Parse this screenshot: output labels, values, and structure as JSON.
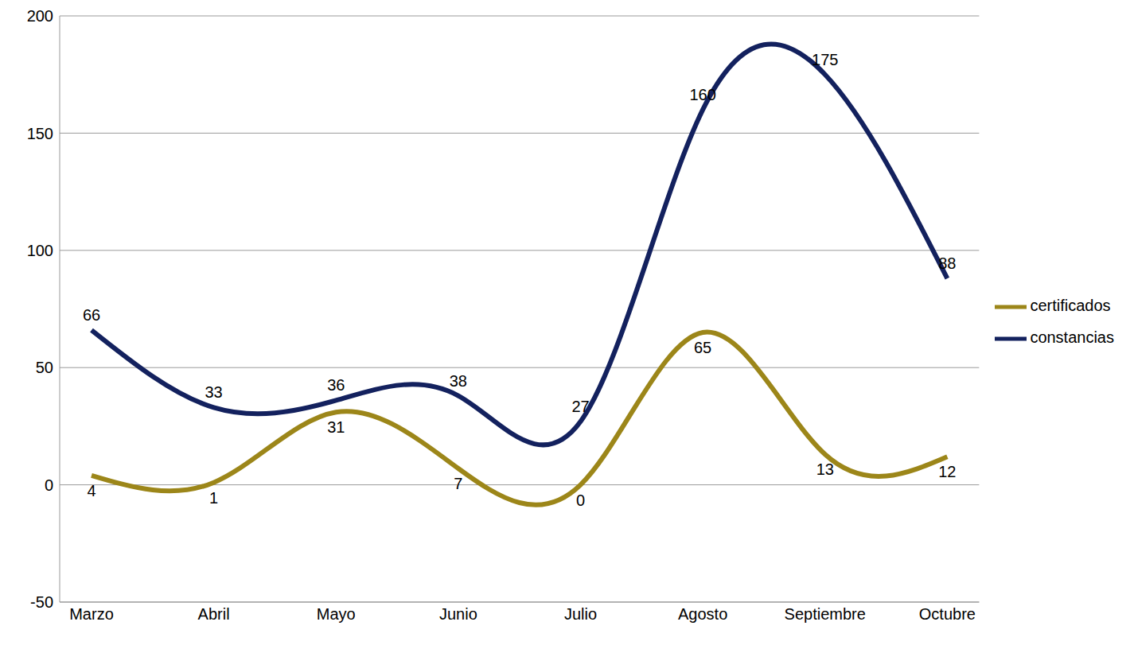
{
  "chart_data": {
    "type": "line",
    "categories": [
      "Marzo",
      "Abril",
      "Mayo",
      "Junio",
      "Julio",
      "Agosto",
      "Septiembre",
      "Octubre"
    ],
    "series": [
      {
        "name": "constancias",
        "color": "#13215e",
        "line_style": "smooth",
        "values": [
          66,
          33,
          36,
          38,
          27,
          160,
          175,
          88
        ]
      },
      {
        "name": "certificados",
        "color": "#9c8619",
        "line_style": "smooth",
        "values": [
          4,
          1,
          31,
          7,
          0,
          65,
          13,
          12
        ]
      }
    ],
    "ylim": [
      -50,
      200
    ],
    "yticks": [
      -50,
      0,
      50,
      100,
      150,
      200
    ],
    "grid": true,
    "legend": "right",
    "data_labels": true
  }
}
